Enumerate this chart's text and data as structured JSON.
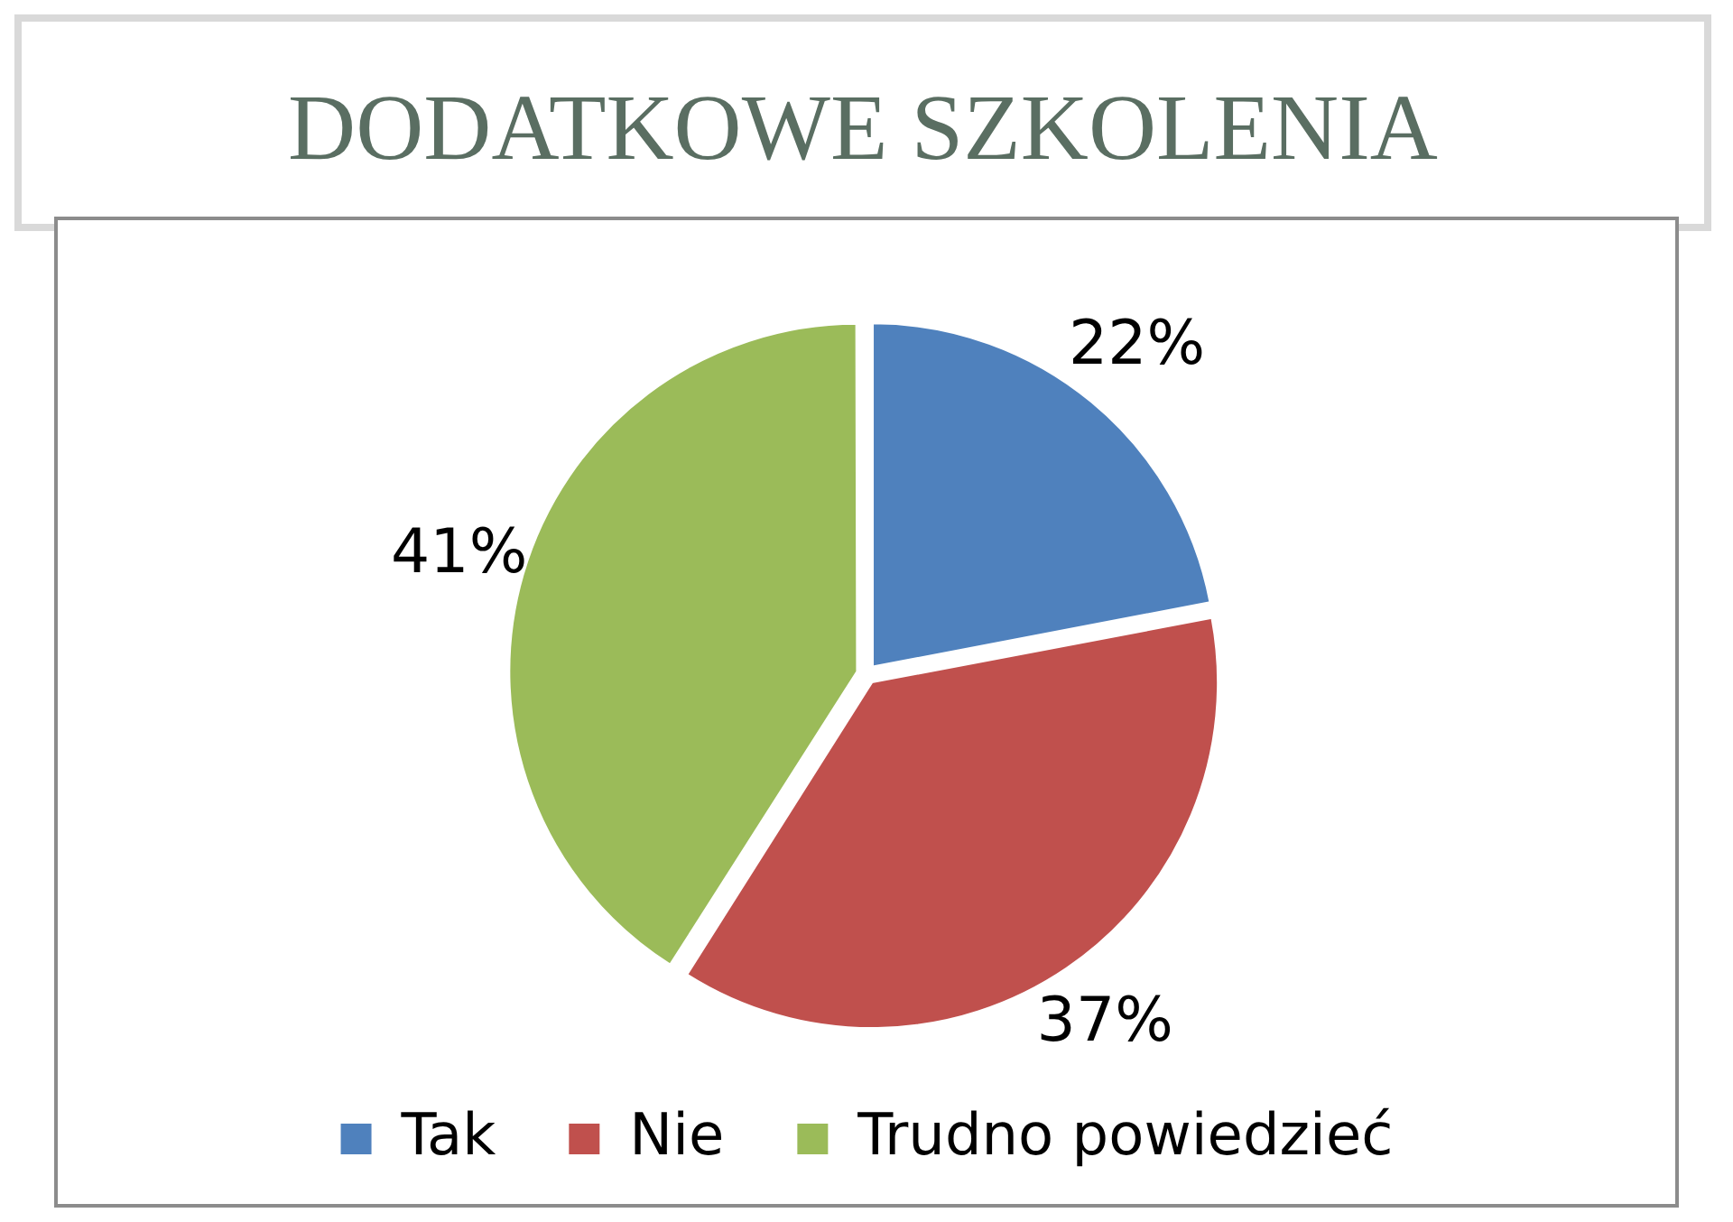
{
  "chart_data": {
    "type": "pie",
    "title": "DODATKOWE SZKOLENIA",
    "categories": [
      "Tak",
      "Nie",
      "Trudno powiedzieć"
    ],
    "values": [
      22,
      37,
      41
    ],
    "value_labels": [
      "22%",
      "37%",
      "41%"
    ],
    "colors": [
      "#4f81bd",
      "#c0504d",
      "#9bbb59"
    ],
    "legend": "bottom"
  }
}
